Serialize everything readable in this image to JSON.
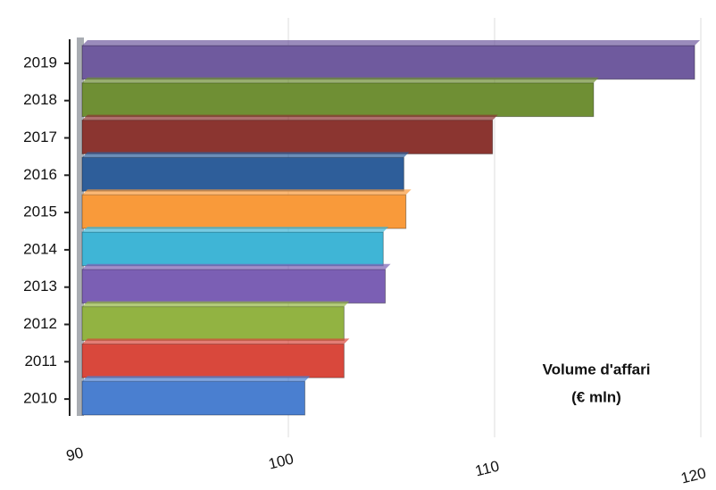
{
  "chart_data": {
    "type": "bar",
    "orientation": "horizontal",
    "categories": [
      "2019",
      "2018",
      "2017",
      "2016",
      "2015",
      "2014",
      "2013",
      "2012",
      "2011",
      "2010"
    ],
    "values": [
      119.7,
      114.8,
      109.9,
      105.6,
      105.7,
      104.6,
      104.7,
      102.7,
      102.7,
      100.8
    ],
    "colors": [
      "#6f5a9e",
      "#6f8f34",
      "#8b3530",
      "#2e5e9a",
      "#f99a3a",
      "#3fb5d6",
      "#7b5fb4",
      "#92b342",
      "#d9483c",
      "#4a7fd0"
    ],
    "xlim": [
      90,
      120
    ],
    "xticks": [
      90,
      100,
      110,
      120
    ],
    "grid": true,
    "annotations": [
      "Volume d'affari",
      "(€ mln)"
    ]
  }
}
